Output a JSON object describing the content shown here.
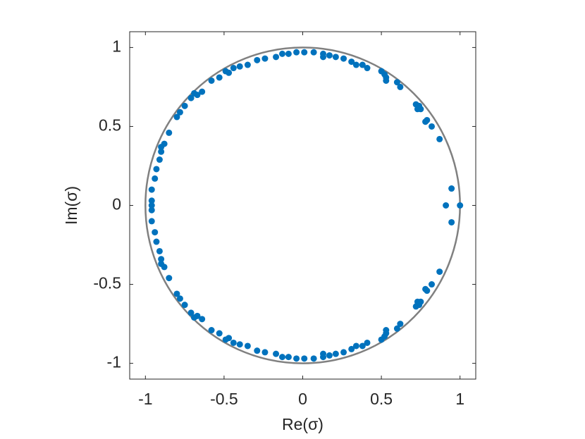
{
  "chart_data": {
    "type": "scatter",
    "xlabel": "Re(σ)",
    "ylabel": "Im(σ)",
    "color": "#0072bd",
    "reference_circle": {
      "radius": 1,
      "color": "#808080"
    },
    "xlim": [
      -1.1,
      1.1
    ],
    "ylim": [
      -1.1,
      1.1
    ],
    "xticks": [
      -1,
      -0.5,
      0,
      0.5,
      1
    ],
    "yticks": [
      -1,
      -0.5,
      0,
      0.5,
      1
    ],
    "x": [
      1,
      0.91,
      -0.96,
      0.946,
      0.87,
      0.79,
      0.82,
      0.78,
      0.75,
      0.74,
      0.72,
      0.73,
      0.62,
      0.6,
      0.53,
      0.53,
      0.52,
      0.5,
      0.41,
      0.38,
      0.34,
      0.31,
      0.26,
      0.21,
      0.17,
      0.13,
      0.13,
      0.07,
      0.01,
      -0.04,
      -0.09,
      -0.13,
      -0.17,
      -0.24,
      -0.29,
      -0.35,
      -0.4,
      -0.44,
      -0.47,
      -0.49,
      -0.53,
      -0.58,
      -0.64,
      -0.67,
      -0.69,
      -0.71,
      -0.75,
      -0.78,
      -0.8,
      -0.85,
      -0.88,
      -0.9,
      -0.9,
      -0.91,
      -0.93,
      -0.94,
      -0.96,
      -0.96,
      0.946,
      0.87,
      0.79,
      0.82,
      0.78,
      0.75,
      0.74,
      0.72,
      0.73,
      0.62,
      0.6,
      0.53,
      0.53,
      0.52,
      0.5,
      0.41,
      0.38,
      0.34,
      0.31,
      0.26,
      0.21,
      0.17,
      0.13,
      0.13,
      0.07,
      0.01,
      -0.04,
      -0.09,
      -0.13,
      -0.17,
      -0.24,
      -0.29,
      -0.35,
      -0.4,
      -0.44,
      -0.47,
      -0.49,
      -0.53,
      -0.58,
      -0.64,
      -0.67,
      -0.69,
      -0.71,
      -0.75,
      -0.78,
      -0.8,
      -0.85,
      -0.88,
      -0.9,
      -0.9,
      -0.91,
      -0.93,
      -0.94,
      -0.96,
      -0.96
    ],
    "values": [
      0,
      0,
      0,
      0.107,
      0.42,
      0.54,
      0.5,
      0.53,
      0.61,
      0.63,
      0.64,
      0.61,
      0.75,
      0.78,
      0.79,
      0.81,
      0.83,
      0.85,
      0.87,
      0.89,
      0.89,
      0.91,
      0.93,
      0.94,
      0.95,
      0.96,
      0.94,
      0.97,
      0.97,
      0.97,
      0.96,
      0.96,
      0.94,
      0.93,
      0.92,
      0.89,
      0.88,
      0.87,
      0.84,
      0.85,
      0.81,
      0.79,
      0.72,
      0.7,
      0.71,
      0.68,
      0.63,
      0.59,
      0.56,
      0.46,
      0.39,
      0.37,
      0.34,
      0.29,
      0.23,
      0.17,
      0.1,
      0.03,
      -0.107,
      -0.42,
      -0.54,
      -0.5,
      -0.53,
      -0.61,
      -0.63,
      -0.64,
      -0.61,
      -0.75,
      -0.78,
      -0.79,
      -0.81,
      -0.83,
      -0.85,
      -0.87,
      -0.89,
      -0.89,
      -0.91,
      -0.93,
      -0.94,
      -0.95,
      -0.96,
      -0.94,
      -0.97,
      -0.97,
      -0.97,
      -0.96,
      -0.96,
      -0.94,
      -0.93,
      -0.92,
      -0.89,
      -0.88,
      -0.87,
      -0.84,
      -0.85,
      -0.81,
      -0.79,
      -0.72,
      -0.7,
      -0.71,
      -0.68,
      -0.63,
      -0.59,
      -0.56,
      -0.46,
      -0.39,
      -0.37,
      -0.34,
      -0.29,
      -0.23,
      -0.17,
      -0.1,
      -0.03
    ]
  }
}
